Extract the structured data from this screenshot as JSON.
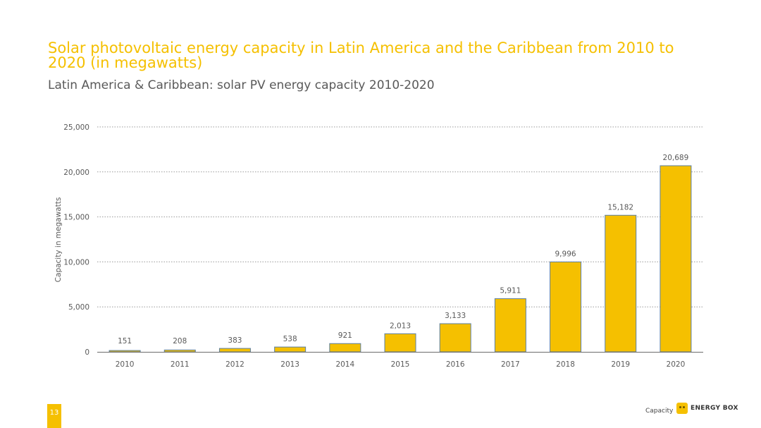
{
  "colors": {
    "accent": "#f5c000",
    "bar_fill": "#f5c000",
    "bar_edge": "#5b7fa6",
    "grid": "#9a9a9a",
    "text": "#595959"
  },
  "slide": {
    "title": "Solar photovoltaic energy capacity in Latin America and the Caribbean from 2010 to 2020 (in megawatts)",
    "subtitle": "Latin America & Caribbean: solar PV energy capacity 2010-2020",
    "page_number": "13",
    "footer_label": "Capacity",
    "logo_text": "ENERGY BOX"
  },
  "chart_data": {
    "type": "bar",
    "title": "",
    "xlabel": "",
    "ylabel": "Capacity in megawatts",
    "categories": [
      "2010",
      "2011",
      "2012",
      "2013",
      "2014",
      "2015",
      "2016",
      "2017",
      "2018",
      "2019",
      "2020"
    ],
    "values": [
      151,
      208,
      383,
      538,
      921,
      2013,
      3133,
      5911,
      9996,
      15182,
      20689
    ],
    "data_labels": [
      "151",
      "208",
      "383",
      "538",
      "921",
      "2,013",
      "3,133",
      "5,911",
      "9,996",
      "15,182",
      "20,689"
    ],
    "ylim": [
      0,
      25000
    ],
    "yticks": [
      0,
      5000,
      10000,
      15000,
      20000,
      25000
    ],
    "ytick_labels": [
      "0",
      "5,000",
      "10,000",
      "15,000",
      "20,000",
      "25,000"
    ],
    "grid": true,
    "grid_style": "dotted",
    "legend": "none"
  }
}
